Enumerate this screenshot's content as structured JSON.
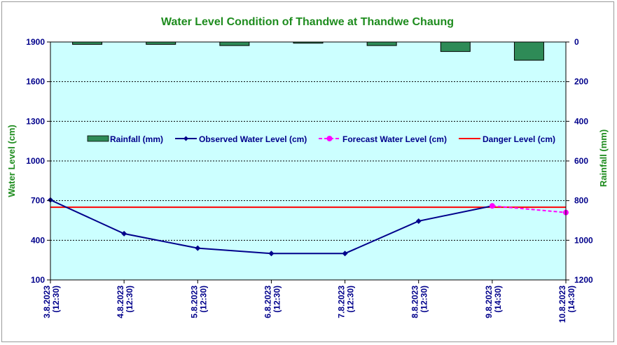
{
  "chart_data": {
    "type": "line",
    "title": "Water Level Condition of Thandwe at Thandwe Chaung",
    "ylabel": "Water Level (cm)",
    "y2label": "Rainfall (mm)",
    "ylim": [
      100,
      1900
    ],
    "yticks": [
      100,
      400,
      700,
      1000,
      1300,
      1600,
      1900
    ],
    "y2lim": [
      0,
      1200
    ],
    "y2ticks": [
      0,
      200,
      400,
      600,
      800,
      1000,
      1200
    ],
    "y2_inverted": true,
    "grid": true,
    "legend_position": "center",
    "categories": [
      {
        "date": "3.8.2023",
        "time": "(12:30)"
      },
      {
        "date": "4.8.2023",
        "time": "(12:30)"
      },
      {
        "date": "5.8.2023",
        "time": "(12:30)"
      },
      {
        "date": "6.8.2023",
        "time": "(12:30)"
      },
      {
        "date": "7.8.2023",
        "time": "(12:30)"
      },
      {
        "date": "8.8.2023",
        "time": "(12:30)"
      },
      {
        "date": "9.8.2023",
        "time": "(14:30)"
      },
      {
        "date": "10.8.2023",
        "time": "(14:30)"
      }
    ],
    "series": [
      {
        "name": "Rainfall (mm)",
        "kind": "bar",
        "axis": "right",
        "color": "#2e8b57",
        "values": [
          12,
          12,
          18,
          6,
          18,
          48,
          92,
          null
        ]
      },
      {
        "name": "Observed Water Level (cm)",
        "kind": "line",
        "axis": "left",
        "color": "#00008b",
        "values": [
          705,
          450,
          340,
          300,
          300,
          545,
          660,
          null
        ]
      },
      {
        "name": "Forecast Water Level (cm)",
        "kind": "dashed-line",
        "axis": "left",
        "color": "#ff00ff",
        "values": [
          null,
          null,
          null,
          null,
          null,
          null,
          660,
          610
        ]
      },
      {
        "name": "Danger Level (cm)",
        "kind": "hline",
        "axis": "left",
        "color": "#ff0000",
        "value": 650
      }
    ]
  }
}
